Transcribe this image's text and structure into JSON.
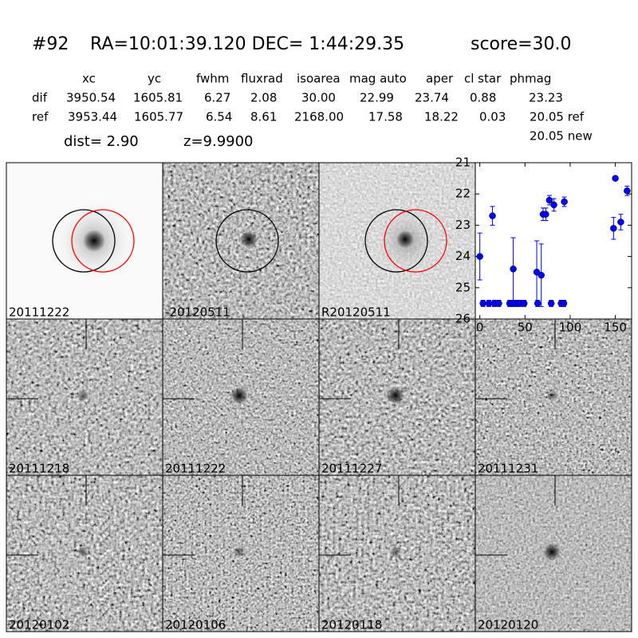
{
  "header": {
    "id": "#92",
    "coords": "RA=10:01:39.120 DEC= 1:44:29.35",
    "score": "score=30.0"
  },
  "table": {
    "columns": [
      "xc",
      "yc",
      "fwhm",
      "fluxrad",
      "isoarea",
      "mag auto",
      "aper",
      "cl star",
      "phmag"
    ],
    "rows": [
      [
        "dif",
        "3950.54",
        "1605.81",
        "6.27",
        "2.08",
        "30.00",
        "22.99",
        "23.74",
        "0.88",
        "23.23"
      ],
      [
        "ref",
        "3953.44",
        "1605.77",
        "6.54",
        "8.61",
        "2168.00",
        "17.58",
        "18.22",
        "0.03",
        "20.05 ref"
      ]
    ]
  },
  "info": {
    "dist": "dist=  2.90",
    "z": "z=9.9900",
    "new": "20.05 new"
  },
  "stamps": [
    {
      "label": "20111222"
    },
    {
      "label": "-20120511"
    },
    {
      "label": "R20120511"
    },
    {
      "label": "20111218"
    },
    {
      "label": "20111222",
      "color": "#ff0000"
    },
    {
      "label": "20111227"
    },
    {
      "label": "20111231"
    },
    {
      "label": "20120102"
    },
    {
      "label": "20120106"
    },
    {
      "label": "20120118"
    },
    {
      "label": "20120120"
    }
  ],
  "chart_data": {
    "type": "errorbar",
    "xlim": [
      -5,
      168
    ],
    "ylim": [
      21,
      26
    ],
    "y_inverted": true,
    "xticks": [
      0,
      50,
      100,
      150
    ],
    "yticks": [
      21,
      22,
      23,
      24,
      25,
      26
    ],
    "series": [
      {
        "color": "#0000ff",
        "x": [
          0,
          3.5,
          10,
          14,
          16,
          21,
          33,
          36,
          37,
          40,
          44,
          49,
          63,
          64,
          68,
          70,
          73,
          77,
          79,
          82,
          90,
          93,
          93.5,
          148,
          150,
          156,
          163
        ],
        "values": [
          24.0,
          25.5,
          25.5,
          22.7,
          25.5,
          25.5,
          25.5,
          25.5,
          24.4,
          25.5,
          25.5,
          25.5,
          24.5,
          25.5,
          24.6,
          22.65,
          22.65,
          22.2,
          25.5,
          22.35,
          25.5,
          25.5,
          22.25,
          23.1,
          21.5,
          22.9,
          21.9
        ],
        "errors": [
          0.75,
          0.1,
          0.1,
          0.3,
          0.1,
          0.1,
          0.1,
          0.1,
          1.0,
          0.1,
          0.1,
          0.1,
          1.0,
          0.1,
          1.0,
          0.2,
          0.2,
          0.15,
          0.1,
          0.2,
          0.1,
          0.1,
          0.15,
          0.35,
          0.05,
          0.25,
          0.15
        ]
      }
    ]
  }
}
